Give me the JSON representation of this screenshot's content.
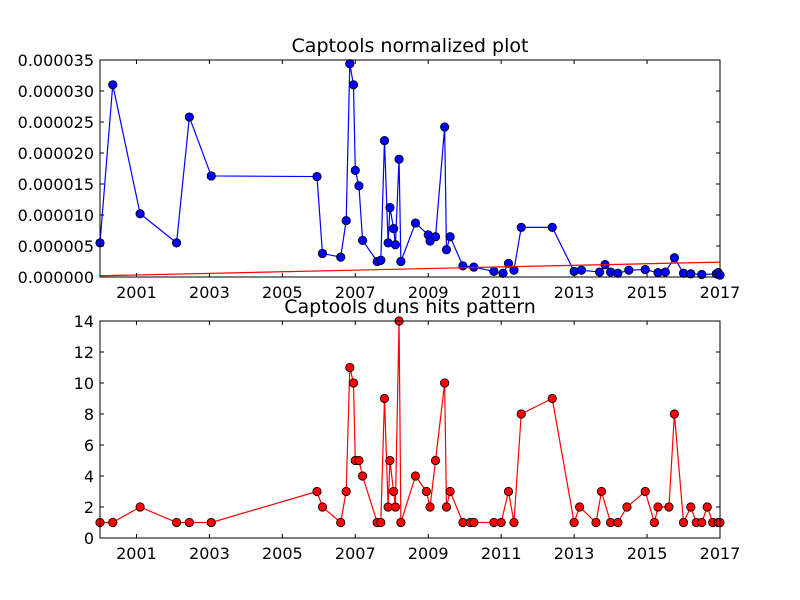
{
  "chart_data": [
    {
      "type": "line",
      "title": "Captools normalized plot",
      "xlabel": "",
      "ylabel": "",
      "xlim": [
        2000.0,
        2017.0
      ],
      "ylim": [
        0,
        3.5e-05
      ],
      "grid": false,
      "xticks": [
        2001,
        2003,
        2005,
        2007,
        2009,
        2011,
        2013,
        2015,
        2017
      ],
      "xtick_labels": [
        "2001",
        "2003",
        "2005",
        "2007",
        "2009",
        "2011",
        "2013",
        "2015",
        "2017"
      ],
      "yticks": [
        0,
        5e-06,
        1e-05,
        1.5e-05,
        2e-05,
        2.5e-05,
        3e-05,
        3.5e-05
      ],
      "ytick_labels": [
        "0.000000",
        "0.000005",
        "0.000010",
        "0.000015",
        "0.000020",
        "0.000025",
        "0.000030",
        "0.000035"
      ],
      "series": [
        {
          "color": "#0000ff",
          "marker": "circle",
          "points": [
            [
              2000.0,
              5.5e-06
            ],
            [
              2000.35,
              3.1e-05
            ],
            [
              2001.1,
              1.02e-05
            ],
            [
              2002.1,
              5.5e-06
            ],
            [
              2002.45,
              2.58e-05
            ],
            [
              2003.05,
              1.63e-05
            ],
            [
              2005.95,
              1.62e-05
            ],
            [
              2006.1,
              3.8e-06
            ],
            [
              2006.6,
              3.2e-06
            ],
            [
              2006.75,
              9.1e-06
            ],
            [
              2006.85,
              3.44e-05
            ],
            [
              2006.95,
              3.1e-05
            ],
            [
              2007.0,
              1.72e-05
            ],
            [
              2007.1,
              1.47e-05
            ],
            [
              2007.2,
              5.9e-06
            ],
            [
              2007.6,
              2.5e-06
            ],
            [
              2007.7,
              2.7e-06
            ],
            [
              2007.8,
              2.2e-05
            ],
            [
              2007.9,
              5.5e-06
            ],
            [
              2007.95,
              1.12e-05
            ],
            [
              2008.05,
              7.8e-06
            ],
            [
              2008.1,
              5.2e-06
            ],
            [
              2008.2,
              1.9e-05
            ],
            [
              2008.25,
              2.5e-06
            ],
            [
              2008.65,
              8.7e-06
            ],
            [
              2009.0,
              6.8e-06
            ],
            [
              2009.05,
              5.8e-06
            ],
            [
              2009.2,
              6.5e-06
            ],
            [
              2009.45,
              2.42e-05
            ],
            [
              2009.5,
              4.4e-06
            ],
            [
              2009.6,
              6.5e-06
            ],
            [
              2009.95,
              1.8e-06
            ],
            [
              2010.25,
              1.6e-06
            ],
            [
              2010.8,
              9e-07
            ],
            [
              2011.05,
              6e-07
            ],
            [
              2011.2,
              2.2e-06
            ],
            [
              2011.35,
              1.1e-06
            ],
            [
              2011.55,
              8e-06
            ],
            [
              2012.4,
              8e-06
            ],
            [
              2013.0,
              9e-07
            ],
            [
              2013.2,
              1.1e-06
            ],
            [
              2013.7,
              8e-07
            ],
            [
              2013.85,
              2e-06
            ],
            [
              2014.0,
              8e-07
            ],
            [
              2014.2,
              6e-07
            ],
            [
              2014.5,
              1.1e-06
            ],
            [
              2014.95,
              1.2e-06
            ],
            [
              2015.3,
              7e-07
            ],
            [
              2015.5,
              8e-07
            ],
            [
              2015.75,
              3.1e-06
            ],
            [
              2016.0,
              6e-07
            ],
            [
              2016.2,
              5e-07
            ],
            [
              2016.5,
              4e-07
            ],
            [
              2016.9,
              5e-07
            ],
            [
              2016.95,
              7e-07
            ],
            [
              2017.0,
              3e-07
            ]
          ]
        },
        {
          "color": "#ff0000",
          "marker": "none",
          "points": [
            [
              2000.0,
              2e-07
            ],
            [
              2017.0,
              2.4e-06
            ]
          ]
        }
      ]
    },
    {
      "type": "line",
      "title": "Captools duns hits pattern",
      "xlabel": "",
      "ylabel": "",
      "xlim": [
        2000.0,
        2017.0
      ],
      "ylim": [
        0,
        14
      ],
      "grid": false,
      "xticks": [
        2001,
        2003,
        2005,
        2007,
        2009,
        2011,
        2013,
        2015,
        2017
      ],
      "xtick_labels": [
        "2001",
        "2003",
        "2005",
        "2007",
        "2009",
        "2011",
        "2013",
        "2015",
        "2017"
      ],
      "yticks": [
        0,
        2,
        4,
        6,
        8,
        10,
        12,
        14
      ],
      "ytick_labels": [
        "0",
        "2",
        "4",
        "6",
        "8",
        "10",
        "12",
        "14"
      ],
      "series": [
        {
          "color": "#ff0000",
          "marker": "circle",
          "points": [
            [
              2000.0,
              1
            ],
            [
              2000.35,
              1
            ],
            [
              2001.1,
              2
            ],
            [
              2002.1,
              1
            ],
            [
              2002.45,
              1
            ],
            [
              2003.05,
              1
            ],
            [
              2005.95,
              3
            ],
            [
              2006.1,
              2
            ],
            [
              2006.6,
              1
            ],
            [
              2006.75,
              3
            ],
            [
              2006.85,
              11
            ],
            [
              2006.95,
              10
            ],
            [
              2007.0,
              5
            ],
            [
              2007.1,
              5
            ],
            [
              2007.2,
              4
            ],
            [
              2007.6,
              1
            ],
            [
              2007.7,
              1
            ],
            [
              2007.8,
              9
            ],
            [
              2007.9,
              2
            ],
            [
              2007.95,
              5
            ],
            [
              2008.05,
              3
            ],
            [
              2008.1,
              2
            ],
            [
              2008.2,
              14
            ],
            [
              2008.25,
              1
            ],
            [
              2008.65,
              4
            ],
            [
              2008.95,
              3
            ],
            [
              2009.05,
              2
            ],
            [
              2009.2,
              5
            ],
            [
              2009.45,
              10
            ],
            [
              2009.5,
              2
            ],
            [
              2009.6,
              3
            ],
            [
              2009.95,
              1
            ],
            [
              2010.15,
              1
            ],
            [
              2010.25,
              1
            ],
            [
              2010.8,
              1
            ],
            [
              2011.0,
              1
            ],
            [
              2011.2,
              3
            ],
            [
              2011.35,
              1
            ],
            [
              2011.55,
              8
            ],
            [
              2012.4,
              9
            ],
            [
              2013.0,
              1
            ],
            [
              2013.15,
              2
            ],
            [
              2013.6,
              1
            ],
            [
              2013.75,
              3
            ],
            [
              2014.0,
              1
            ],
            [
              2014.2,
              1
            ],
            [
              2014.45,
              2
            ],
            [
              2014.95,
              3
            ],
            [
              2015.2,
              1
            ],
            [
              2015.3,
              2
            ],
            [
              2015.6,
              2
            ],
            [
              2015.75,
              8
            ],
            [
              2016.0,
              1
            ],
            [
              2016.2,
              2
            ],
            [
              2016.35,
              1
            ],
            [
              2016.5,
              1
            ],
            [
              2016.65,
              2
            ],
            [
              2016.8,
              1
            ],
            [
              2016.95,
              1
            ],
            [
              2017.0,
              1
            ]
          ]
        }
      ]
    }
  ]
}
